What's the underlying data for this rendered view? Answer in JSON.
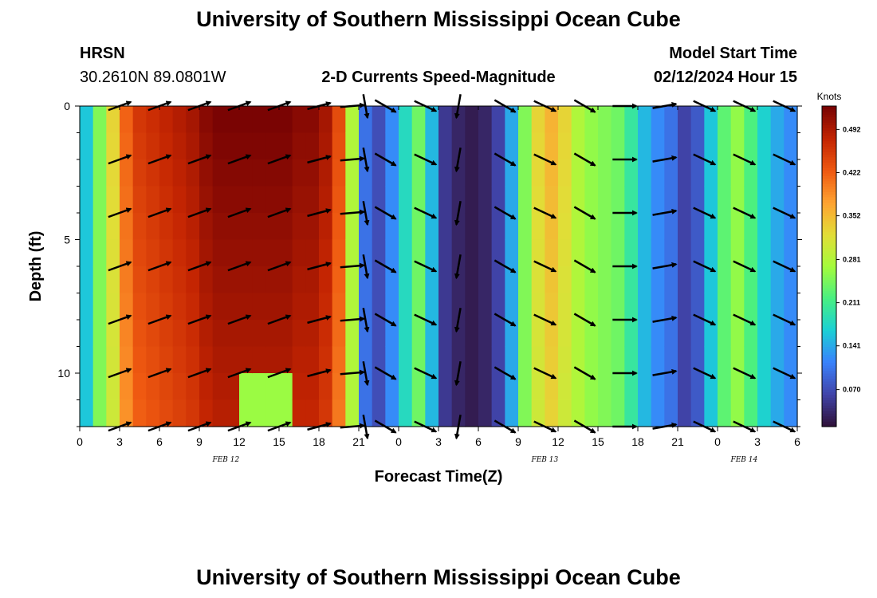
{
  "page": {
    "title": "University of Southern Mississippi Ocean Cube",
    "bottom_title": "University of Southern Mississippi Ocean Cube",
    "station": "HRSN",
    "coords": "30.2610N  89.0801W",
    "subtitle": "2-D Currents Speed-Magnitude",
    "model_label": "Model Start Time",
    "model_time": "02/12/2024 Hour 15"
  },
  "chart_data": {
    "type": "heatmap",
    "title": "2-D Currents Speed-Magnitude",
    "xlabel": "Forecast Time(Z)",
    "ylabel": "Depth (ft)",
    "units": "Knots",
    "x_tick_labels": [
      "0",
      "3",
      "6",
      "9",
      "12",
      "15",
      "18",
      "21",
      "0",
      "3",
      "6",
      "9",
      "12",
      "15",
      "18",
      "21",
      "0",
      "3",
      "6"
    ],
    "y_ticks": [
      0,
      5,
      10
    ],
    "ylim": [
      0,
      12
    ],
    "xlim_hours": [
      0,
      54
    ],
    "date_labels": [
      {
        "text": "FEB 12",
        "hour": 11
      },
      {
        "text": "FEB 13",
        "hour": 35
      },
      {
        "text": "FEB 14",
        "hour": 50
      }
    ],
    "colorbar": {
      "title": "Knots",
      "ticks": [
        "0.492",
        "0.422",
        "0.352",
        "0.281",
        "0.211",
        "0.141",
        "0.070"
      ],
      "tick_values": [
        0.492,
        0.422,
        0.352,
        0.281,
        0.211,
        0.141,
        0.07
      ],
      "range": [
        0.01,
        0.53
      ]
    },
    "speed_profile_by_hour": [
      0.16,
      0.25,
      0.33,
      0.42,
      0.46,
      0.47,
      0.48,
      0.49,
      0.5,
      0.52,
      0.53,
      0.53,
      0.53,
      0.53,
      0.53,
      0.53,
      0.52,
      0.52,
      0.5,
      0.44,
      0.28,
      0.1,
      0.07,
      0.12,
      0.18,
      0.24,
      0.15,
      0.05,
      0.03,
      0.02,
      0.03,
      0.06,
      0.14,
      0.25,
      0.33,
      0.36,
      0.33,
      0.28,
      0.26,
      0.25,
      0.24,
      0.2,
      0.15,
      0.12,
      0.1,
      0.06,
      0.08,
      0.16,
      0.23,
      0.26,
      0.22,
      0.17,
      0.14,
      0.12,
      0.11
    ],
    "low_speed_hours": [
      12,
      13,
      14,
      15
    ],
    "arrow_depths_ft": [
      0,
      2,
      4,
      6,
      8,
      10,
      12
    ],
    "arrow_hours": [
      3,
      6,
      9,
      12,
      15,
      18,
      20.5,
      21.5,
      23,
      26,
      28.5,
      32,
      35,
      38,
      41,
      44,
      47,
      50,
      53
    ],
    "arrow_angles_deg": [
      20,
      20,
      20,
      20,
      20,
      15,
      5,
      -80,
      -30,
      -25,
      -100,
      -30,
      -25,
      -30,
      0,
      10,
      -25,
      -25,
      -25
    ]
  }
}
